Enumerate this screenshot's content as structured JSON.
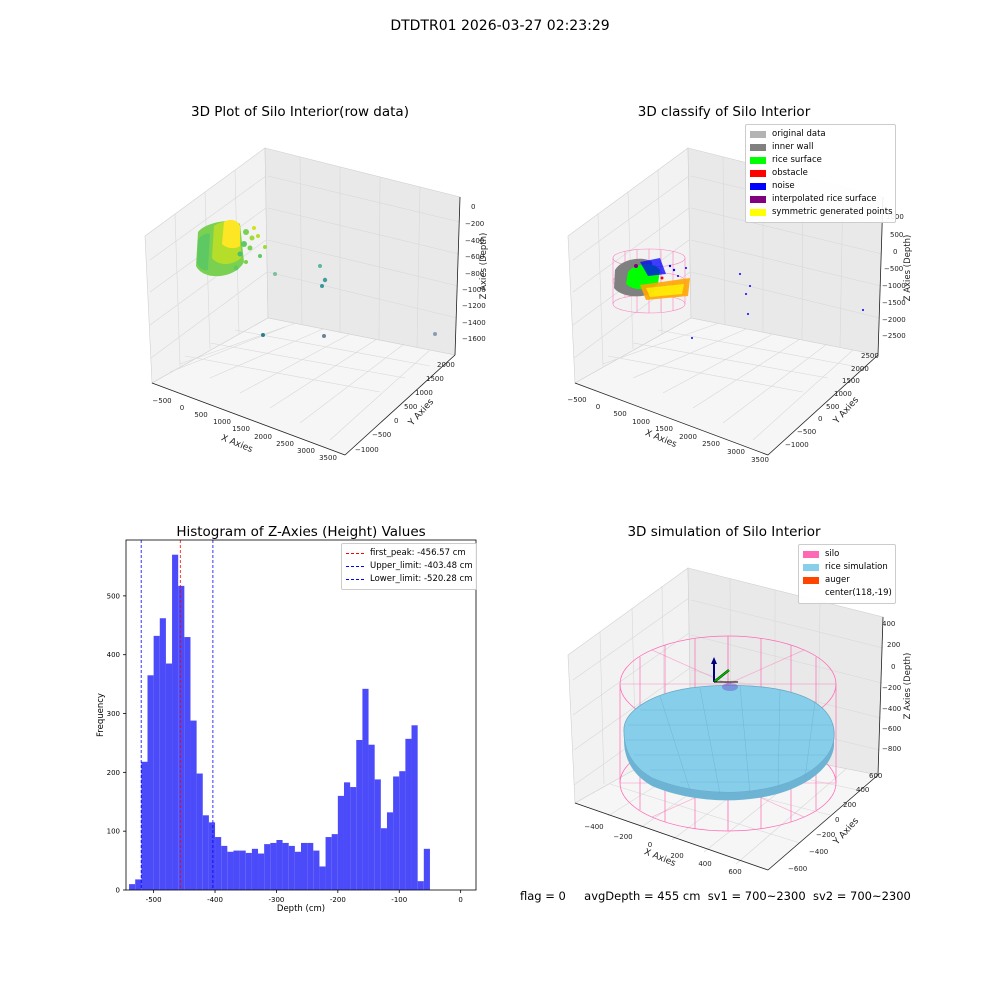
{
  "figure": {
    "suptitle": "DTDTR01 2026-03-27 02:23:29",
    "status_line": {
      "flag": "flag = 0",
      "avg_depth": "avgDepth = 455 cm",
      "sv1": "sv1 = 700~2300",
      "sv2": "sv2 = 700~2300"
    }
  },
  "chart_data": [
    {
      "type": "scatter",
      "title": "3D Plot of Silo Interior(row data)",
      "xlabel": "X Axies",
      "ylabel": "Y Axies",
      "zlabel": "Z Axies (Depth)",
      "x_ticks": [
        "−500",
        "0",
        "500",
        "1000",
        "1500",
        "2000",
        "2500",
        "3000",
        "3500"
      ],
      "y_ticks": [
        "−1000",
        "−500",
        "0",
        "500",
        "1000",
        "1500",
        "2000"
      ],
      "z_ticks": [
        "0",
        "−200",
        "−400",
        "−600",
        "−800",
        "−1000",
        "−1200",
        "−1400",
        "−1600"
      ],
      "grid": true,
      "colormap": [
        "#fde725",
        "#5ec962",
        "#21918c",
        "#3b528b"
      ]
    },
    {
      "type": "scatter",
      "title": "3D classify of Silo Interior",
      "xlabel": "X Axies",
      "ylabel": "Y Axies",
      "zlabel": "Z Axies (Depth)",
      "x_ticks": [
        "−500",
        "0",
        "500",
        "1000",
        "1500",
        "2000",
        "2500",
        "3000",
        "3500"
      ],
      "y_ticks": [
        "−1000",
        "−500",
        "0",
        "500",
        "1000",
        "1500",
        "2000",
        "2500"
      ],
      "z_ticks": [
        "1000",
        "500",
        "0",
        "−500",
        "−1000",
        "−1500",
        "−2000",
        "−2500"
      ],
      "grid": true,
      "legend_position": "top-right",
      "legend": [
        {
          "label": "original data",
          "color": "#b3b3b3"
        },
        {
          "label": "inner wall",
          "color": "#808080"
        },
        {
          "label": "rice surface",
          "color": "#00ff00"
        },
        {
          "label": "obstacle",
          "color": "#ff0000"
        },
        {
          "label": "noise",
          "color": "#0000ff"
        },
        {
          "label": "interpolated rice surface",
          "color": "#800080"
        },
        {
          "label": "symmetric generated points",
          "color": "#ffff00"
        }
      ]
    },
    {
      "type": "bar",
      "title": "Histogram of Z-Axies (Height) Values",
      "xlabel": "Depth (cm)",
      "ylabel": "Frequency",
      "bar_color": "#4b4bfa",
      "xlim": [
        -545,
        25
      ],
      "ylim": [
        0,
        595
      ],
      "x_ticks": [
        -500,
        -400,
        -300,
        -200,
        -100,
        0
      ],
      "y_ticks": [
        0,
        100,
        200,
        300,
        400,
        500
      ],
      "bin_start": -540,
      "bin_width": 10,
      "values": [
        10,
        18,
        218,
        365,
        432,
        462,
        385,
        570,
        517,
        430,
        288,
        198,
        127,
        115,
        90,
        75,
        65,
        67,
        67,
        63,
        70,
        62,
        78,
        80,
        85,
        80,
        75,
        65,
        80,
        80,
        67,
        40,
        90,
        95,
        160,
        183,
        175,
        255,
        342,
        247,
        188,
        105,
        132,
        193,
        202,
        257,
        280,
        15,
        70
      ],
      "lines": [
        {
          "label": "first_peak: -456.57 cm",
          "x": -456.57,
          "color": "#ff0000"
        },
        {
          "label": "Upper_limit: -403.48 cm",
          "x": -403.48,
          "color": "#0000ff"
        },
        {
          "label": "Lower_limit: -520.28 cm",
          "x": -520.28,
          "color": "#0000ff"
        }
      ],
      "legend_position": "top-right"
    },
    {
      "type": "area",
      "title": "3D simulation of Silo Interior",
      "xlabel": "X Axies",
      "ylabel": "Y Axies",
      "zlabel": "Z Axies (Depth)",
      "x_ticks": [
        "−400",
        "−200",
        "0",
        "200",
        "400",
        "600"
      ],
      "y_ticks": [
        "−600",
        "−400",
        "−200",
        "0",
        "200",
        "400",
        "600"
      ],
      "z_ticks": [
        "400",
        "200",
        "0",
        "−200",
        "−400",
        "−600",
        "−800"
      ],
      "grid": true,
      "legend_position": "top-right",
      "legend": [
        {
          "label": "silo",
          "color": "#ff69b4"
        },
        {
          "label": "rice simulation",
          "color": "#87ceeb"
        },
        {
          "label": "auger",
          "color": "#ff4500"
        },
        {
          "label": "center(118,-19)",
          "color": ""
        }
      ]
    }
  ]
}
